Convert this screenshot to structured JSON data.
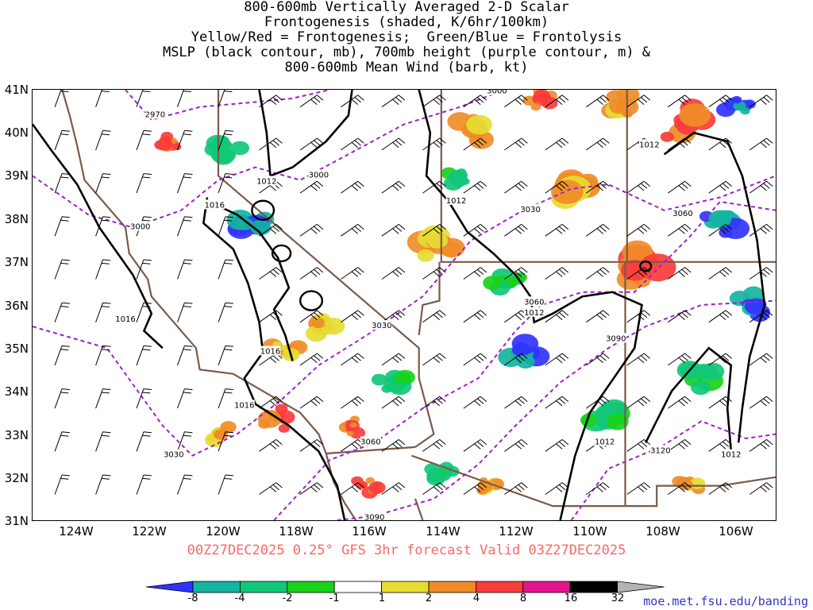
{
  "title_lines": [
    "800-600mb Vertically Averaged 2-D Scalar",
    "Frontogenesis (shaded, K/6hr/100km)",
    "Yellow/Red = Frontogenesis;  Green/Blue = Frontolysis",
    "MSLP (black contour, mb), 700mb height (purple contour, m) &",
    "800-600mb Mean Wind (barb, kt)"
  ],
  "lat_labels": [
    "41N",
    "40N",
    "39N",
    "38N",
    "37N",
    "36N",
    "35N",
    "34N",
    "33N",
    "32N",
    "31N"
  ],
  "lon_labels": [
    "124W",
    "122W",
    "120W",
    "118W",
    "116W",
    "114W",
    "112W",
    "110W",
    "108W",
    "106W"
  ],
  "valid_text": "00Z27DEC2025 0.25° GFS 3hr forecast Valid 03Z27DEC2025",
  "url": "moe.met.fsu.edu/banding",
  "colorbar": {
    "labels": [
      "-8",
      "-4",
      "-2",
      "-1",
      "1",
      "2",
      "4",
      "8",
      "16",
      "32"
    ],
    "colors": [
      "#3333ff",
      "#14b4a0",
      "#10c878",
      "#19d219",
      "#ffffff",
      "#e6dc32",
      "#f08c28",
      "#fa3c3c",
      "#e6148c",
      "#000000",
      "#b4b4b4"
    ]
  },
  "colors": {
    "state_borders": "#7a5a4a",
    "mslp_contour": "#000000",
    "height_contour": "#a020c8"
  },
  "mslp_labels": [
    {
      "text": "1012",
      "lon": -118.7,
      "lat": 38.85
    },
    {
      "text": "1016",
      "lon": -120.1,
      "lat": 38.3
    },
    {
      "text": "1016",
      "lon": -122.5,
      "lat": 35.65
    },
    {
      "text": "1016",
      "lon": -118.6,
      "lat": 34.9
    },
    {
      "text": "1016",
      "lon": -119.3,
      "lat": 33.65
    },
    {
      "text": "1012",
      "lon": -113.6,
      "lat": 38.4
    },
    {
      "text": "1012",
      "lon": -111.5,
      "lat": 35.8
    },
    {
      "text": "1012",
      "lon": -108.4,
      "lat": 39.7
    },
    {
      "text": "1012",
      "lon": -109.6,
      "lat": 32.8
    },
    {
      "text": "1012",
      "lon": -106.2,
      "lat": 32.5
    }
  ],
  "height_labels": [
    {
      "text": "2970",
      "lon": -121.7,
      "lat": 40.4
    },
    {
      "text": "3000",
      "lon": -122.1,
      "lat": 37.8
    },
    {
      "text": "3000",
      "lon": -117.3,
      "lat": 39.0
    },
    {
      "text": "3000",
      "lon": -112.5,
      "lat": 40.95
    },
    {
      "text": "3030",
      "lon": -121.2,
      "lat": 32.5
    },
    {
      "text": "3030",
      "lon": -115.6,
      "lat": 35.5
    },
    {
      "text": "3030",
      "lon": -111.6,
      "lat": 38.2
    },
    {
      "text": "3060",
      "lon": -115.9,
      "lat": 32.8
    },
    {
      "text": "3060",
      "lon": -111.5,
      "lat": 36.05
    },
    {
      "text": "3060",
      "lon": -107.5,
      "lat": 38.1
    },
    {
      "text": "3090",
      "lon": -115.8,
      "lat": 31.05
    },
    {
      "text": "3090",
      "lon": -109.3,
      "lat": 35.2
    },
    {
      "text": "3120",
      "lon": -108.1,
      "lat": 32.6
    }
  ]
}
